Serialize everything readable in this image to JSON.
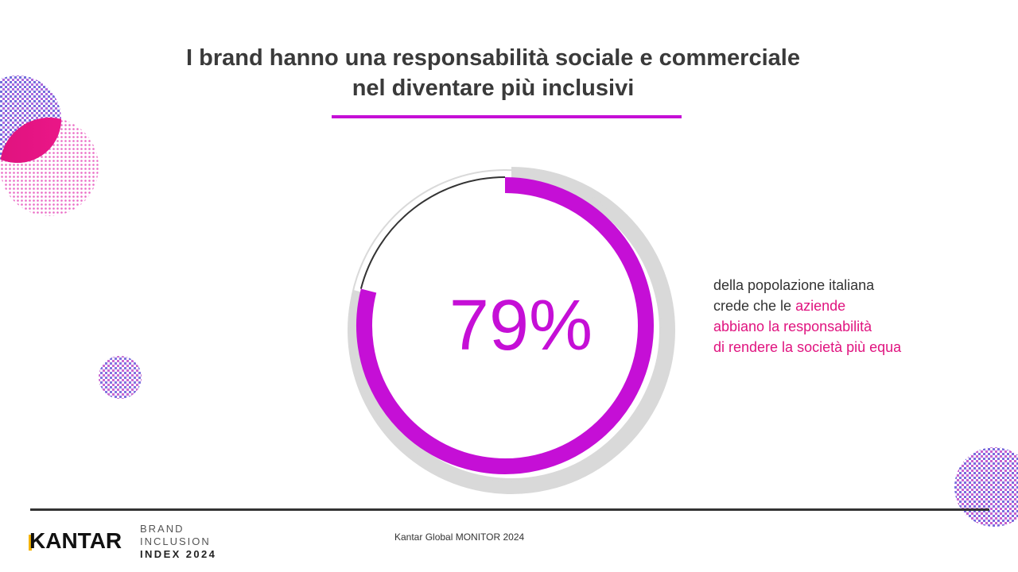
{
  "title": {
    "line1": "I brand hanno una responsabilità sociale e commerciale",
    "line2": "nel diventare più inclusivi"
  },
  "stat": {
    "value_label": "79%",
    "percent": 79
  },
  "description": {
    "line1": "della popolazione italiana",
    "line2_plain": "crede che le ",
    "line2_highlight": "aziende",
    "line3": "abbiano la responsabilità",
    "line4": "di rendere la società più equa"
  },
  "footer": {
    "logo": "KANTAR",
    "index_line1": "BRAND",
    "index_line2": "INCLUSION",
    "index_line3": "INDEX 2024",
    "source": "Kantar Global MONITOR 2024"
  },
  "colors": {
    "accent": "#c50fd6",
    "highlight": "#e0137f",
    "track_grey": "#d9d9d9",
    "dark": "#333333"
  }
}
